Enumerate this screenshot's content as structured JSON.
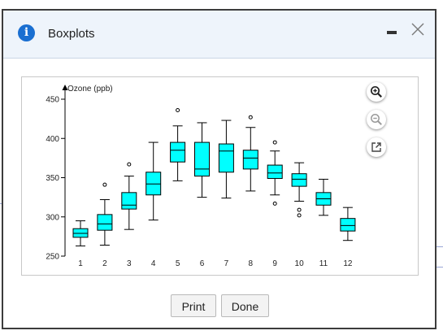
{
  "dialog": {
    "title": "Boxplots",
    "buttons": {
      "print": "Print",
      "done": "Done"
    }
  },
  "toolbar": {
    "zoom_in": "zoom-in-icon",
    "zoom_out": "zoom-out-icon",
    "popout": "popout-icon"
  },
  "chart_data": {
    "type": "boxplot",
    "title": "",
    "xlabel": "",
    "ylabel": "Ozone (ppb)",
    "ylim": [
      250,
      450
    ],
    "yticks": [
      250,
      300,
      350,
      400,
      450
    ],
    "categories": [
      "1",
      "2",
      "3",
      "4",
      "5",
      "6",
      "7",
      "8",
      "9",
      "10",
      "11",
      "12"
    ],
    "box_color": "#00ffff",
    "boxes": [
      {
        "min": 263,
        "q1": 274,
        "median": 279,
        "q3": 285,
        "max": 295,
        "outliers": []
      },
      {
        "min": 264,
        "q1": 283,
        "median": 291,
        "q3": 303,
        "max": 322,
        "outliers": [
          341
        ]
      },
      {
        "min": 284,
        "q1": 310,
        "median": 315,
        "q3": 331,
        "max": 352,
        "outliers": [
          367
        ]
      },
      {
        "min": 296,
        "q1": 328,
        "median": 342,
        "q3": 357,
        "max": 395,
        "outliers": []
      },
      {
        "min": 346,
        "q1": 370,
        "median": 385,
        "q3": 395,
        "max": 416,
        "outliers": [
          436
        ]
      },
      {
        "min": 325,
        "q1": 352,
        "median": 361,
        "q3": 395,
        "max": 420,
        "outliers": []
      },
      {
        "min": 324,
        "q1": 357,
        "median": 384,
        "q3": 393,
        "max": 423,
        "outliers": []
      },
      {
        "min": 333,
        "q1": 361,
        "median": 375,
        "q3": 385,
        "max": 414,
        "outliers": [
          427
        ]
      },
      {
        "min": 328,
        "q1": 349,
        "median": 356,
        "q3": 366,
        "max": 384,
        "outliers": [
          395,
          317
        ]
      },
      {
        "min": 320,
        "q1": 339,
        "median": 348,
        "q3": 355,
        "max": 369,
        "outliers": [
          309,
          302
        ]
      },
      {
        "min": 302,
        "q1": 315,
        "median": 323,
        "q3": 331,
        "max": 348,
        "outliers": []
      },
      {
        "min": 270,
        "q1": 282,
        "median": 289,
        "q3": 298,
        "max": 312,
        "outliers": []
      }
    ]
  }
}
